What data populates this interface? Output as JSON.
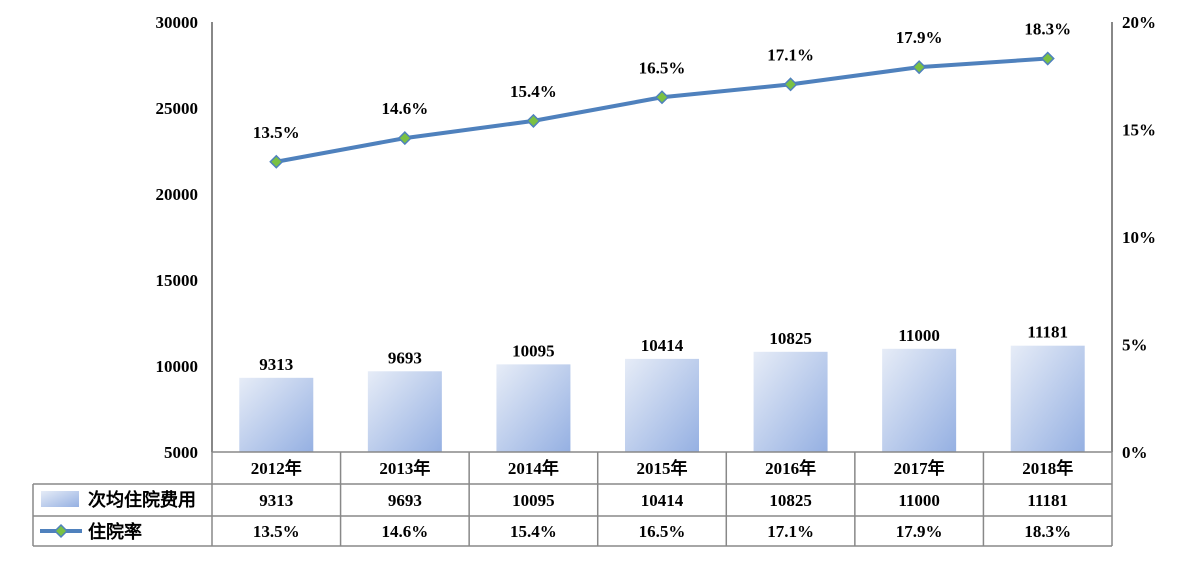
{
  "chart_data": {
    "type": "bar+line",
    "categories": [
      "2012年",
      "2013年",
      "2014年",
      "2015年",
      "2016年",
      "2017年",
      "2018年"
    ],
    "series": [
      {
        "name": "次均住院费用",
        "type": "bar",
        "axis": "left",
        "values": [
          9313,
          9693,
          10095,
          10414,
          10825,
          11000,
          11181
        ],
        "labels": [
          "9313",
          "9693",
          "10095",
          "10414",
          "10825",
          "11000",
          "11181"
        ],
        "color": "#9db5e3"
      },
      {
        "name": "住院率",
        "type": "line",
        "axis": "right",
        "values": [
          13.5,
          14.6,
          15.4,
          16.5,
          17.1,
          17.9,
          18.3
        ],
        "labels": [
          "13.5%",
          "14.6%",
          "15.4%",
          "16.5%",
          "17.1%",
          "17.9%",
          "18.3%"
        ],
        "color": "#4f81bd",
        "marker_color": "#7ac143"
      }
    ],
    "y_left": {
      "range": [
        5000,
        30000
      ],
      "ticks": [
        "5000",
        "10000",
        "15000",
        "20000",
        "25000",
        "30000"
      ]
    },
    "y_right": {
      "range": [
        0,
        20
      ],
      "ticks": [
        "0%",
        "5%",
        "10%",
        "15%",
        "20%"
      ]
    },
    "grid": false,
    "legend": "data-table-bottom"
  }
}
